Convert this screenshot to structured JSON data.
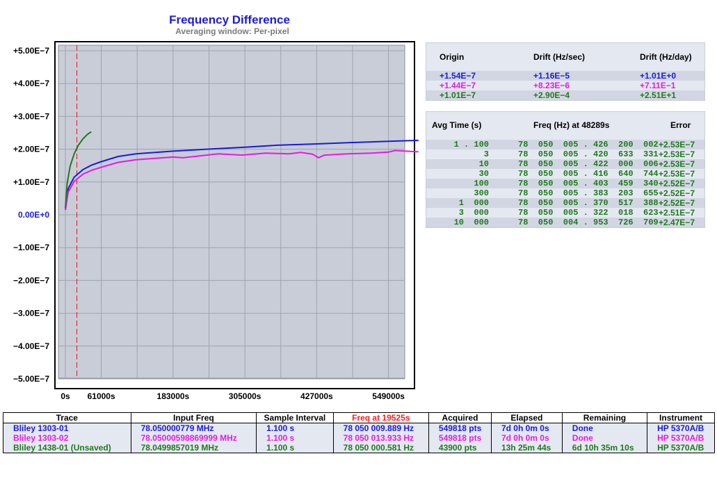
{
  "chart_data": {
    "type": "line",
    "title": "Frequency Difference",
    "subtitle": "Averaging window: Per-pixel",
    "y_ticks": [
      "+5.00E−7",
      "+4.00E−7",
      "+3.00E−7",
      "+2.00E−7",
      "+1.00E−7",
      "0.00E+0",
      "−1.00E−7",
      "−2.00E−7",
      "−3.00E−7",
      "−4.00E−7",
      "−5.00E−7"
    ],
    "x_ticks": [
      "0s",
      "61000s",
      "183000s",
      "305000s",
      "427000s",
      "549000s"
    ],
    "ylim": [
      -5e-07,
      5e-07
    ],
    "xlim": [
      0,
      610000
    ],
    "grid": true,
    "marker_x": 19525,
    "series": [
      {
        "name": "Bliley 1303-01",
        "color": "#1a1adc",
        "x": [
          0,
          5000,
          15000,
          30000,
          45000,
          61000,
          90000,
          120000,
          183000,
          240000,
          305000,
          360000,
          427000,
          480000,
          549000,
          600000
        ],
        "y": [
          1.5e-08,
          8e-08,
          1.15e-07,
          1.38e-07,
          1.52e-07,
          1.62e-07,
          1.78e-07,
          1.86e-07,
          1.94e-07,
          2e-07,
          2.06e-07,
          2.12e-07,
          2.16e-07,
          2.2e-07,
          2.24e-07,
          2.27e-07
        ]
      },
      {
        "name": "Bliley 1303-02",
        "color": "#e619e6",
        "x": [
          0,
          5000,
          15000,
          30000,
          45000,
          61000,
          90000,
          120000,
          183000,
          200000,
          240000,
          260000,
          300000,
          340000,
          380000,
          400000,
          420000,
          430000,
          440000,
          480000,
          520000,
          549000,
          560000,
          600000
        ],
        "y": [
          1.5e-08,
          7e-08,
          1.02e-07,
          1.24e-07,
          1.36e-07,
          1.45e-07,
          1.6e-07,
          1.68e-07,
          1.76e-07,
          1.74e-07,
          1.82e-07,
          1.86e-07,
          1.82e-07,
          1.88e-07,
          1.86e-07,
          1.9e-07,
          1.85e-07,
          1.74e-07,
          1.82e-07,
          1.86e-07,
          1.88e-07,
          1.91e-07,
          1.96e-07,
          1.92e-07
        ]
      },
      {
        "name": "Bliley 1438-01 (Unsaved)",
        "color": "#1f7a1f",
        "x": [
          0,
          3000,
          8000,
          15000,
          22000,
          30000,
          38000,
          43900
        ],
        "y": [
          2e-08,
          9.5e-08,
          1.48e-07,
          1.86e-07,
          2.12e-07,
          2.32e-07,
          2.46e-07,
          2.53e-07
        ]
      }
    ]
  },
  "origin_table": {
    "headers": [
      "Origin",
      "Drift (Hz/sec)",
      "Drift (Hz/day)"
    ],
    "rows": [
      {
        "origin": "+1.54E−7",
        "hz_sec": "+1.16E−5",
        "hz_day": "+1.01E+0",
        "color": "#1a1adc"
      },
      {
        "origin": "+1.44E−7",
        "hz_sec": "+8.23E−6",
        "hz_day": "+7.11E−1",
        "color": "#e619e6"
      },
      {
        "origin": "+1.01E−7",
        "hz_sec": "+2.90E−4",
        "hz_day": "+2.51E+1",
        "color": "#1f7a1f"
      }
    ]
  },
  "avg_table": {
    "headers": [
      "Avg Time (s)",
      "Freq (Hz) at 48289s",
      "Error"
    ],
    "rows": [
      {
        "avg": "1 . 100",
        "freq": "78  050  005 . 426  200  002",
        "err": "+2.53E−7"
      },
      {
        "avg": "3",
        "freq": "78  050  005 . 420  633  331",
        "err": "+2.53E−7"
      },
      {
        "avg": "10",
        "freq": "78  050  005 . 422  000  006",
        "err": "+2.53E−7"
      },
      {
        "avg": "30",
        "freq": "78  050  005 . 416  640  744",
        "err": "+2.53E−7"
      },
      {
        "avg": "100",
        "freq": "78  050  005 . 403  459  340",
        "err": "+2.52E−7"
      },
      {
        "avg": "300",
        "freq": "78  050  005 . 383  203  655",
        "err": "+2.52E−7"
      },
      {
        "avg": "1  000",
        "freq": "78  050  005 . 370  517  388",
        "err": "+2.52E−7"
      },
      {
        "avg": "3  000",
        "freq": "78  050  005 . 322  018  623",
        "err": "+2.51E−7"
      },
      {
        "avg": "10  000",
        "freq": "78  050  004 . 953  726  709",
        "err": "+2.47E−7"
      }
    ]
  },
  "trace_table": {
    "headers": [
      "Trace",
      "Input Freq",
      "Sample Interval",
      "Freq at 19525s",
      "Acquired",
      "Elapsed",
      "Remaining",
      "Instrument"
    ],
    "rows": [
      {
        "color": "#1a1adc",
        "cells": [
          "Bliley 1303-01",
          "78.050000779 MHz",
          "1.100 s",
          "78 050 009.889 Hz",
          "549818 pts",
          "7d 0h 0m 0s",
          "Done",
          "HP 5370A/B"
        ]
      },
      {
        "color": "#e619e6",
        "cells": [
          "Bliley 1303-02",
          "78.05000598869999 MHz",
          "1.100 s",
          "78 050 013.933 Hz",
          "549818 pts",
          "7d 0h 0m 0s",
          "Done",
          "HP 5370A/B"
        ]
      },
      {
        "color": "#1f7a1f",
        "cells": [
          "Bliley 1438-01 (Unsaved)",
          "78.0499857019 MHz",
          "1.100 s",
          "78 050 000.581 Hz",
          "43900 pts",
          "13h 25m 44s",
          "6d 10h 35m 10s",
          "HP 5370A/B"
        ]
      }
    ]
  }
}
